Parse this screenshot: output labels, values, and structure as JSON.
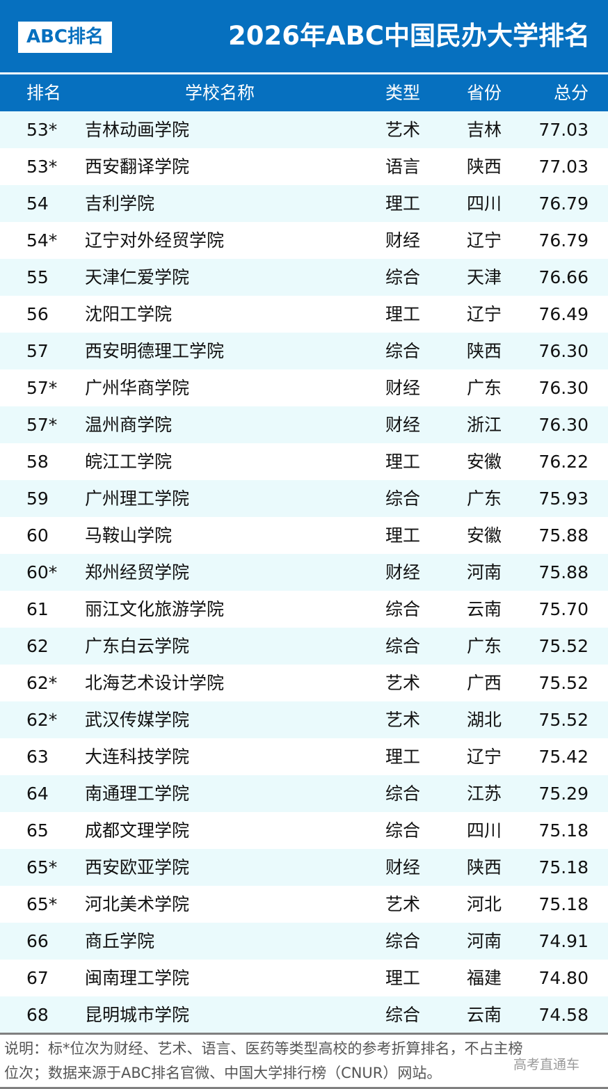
{
  "header": {
    "logo": "ABC排名",
    "title": "2026年ABC中国民办大学排名"
  },
  "columns": [
    "排名",
    "学校名称",
    "类型",
    "省份",
    "总分"
  ],
  "rows": [
    [
      "53*",
      "吉林动画学院",
      "艺术",
      "吉林",
      "77.03"
    ],
    [
      "53*",
      "西安翻译学院",
      "语言",
      "陕西",
      "77.03"
    ],
    [
      "54",
      "吉利学院",
      "理工",
      "四川",
      "76.79"
    ],
    [
      "54*",
      "辽宁对外经贸学院",
      "财经",
      "辽宁",
      "76.79"
    ],
    [
      "55",
      "天津仁爱学院",
      "综合",
      "天津",
      "76.66"
    ],
    [
      "56",
      "沈阳工学院",
      "理工",
      "辽宁",
      "76.49"
    ],
    [
      "57",
      "西安明德理工学院",
      "综合",
      "陕西",
      "76.30"
    ],
    [
      "57*",
      "广州华商学院",
      "财经",
      "广东",
      "76.30"
    ],
    [
      "57*",
      "温州商学院",
      "财经",
      "浙江",
      "76.30"
    ],
    [
      "58",
      "皖江工学院",
      "理工",
      "安徽",
      "76.22"
    ],
    [
      "59",
      "广州理工学院",
      "综合",
      "广东",
      "75.93"
    ],
    [
      "60",
      "马鞍山学院",
      "理工",
      "安徽",
      "75.88"
    ],
    [
      "60*",
      "郑州经贸学院",
      "财经",
      "河南",
      "75.88"
    ],
    [
      "61",
      "丽江文化旅游学院",
      "综合",
      "云南",
      "75.70"
    ],
    [
      "62",
      "广东白云学院",
      "综合",
      "广东",
      "75.52"
    ],
    [
      "62*",
      "北海艺术设计学院",
      "艺术",
      "广西",
      "75.52"
    ],
    [
      "62*",
      "武汉传媒学院",
      "艺术",
      "湖北",
      "75.52"
    ],
    [
      "63",
      "大连科技学院",
      "理工",
      "辽宁",
      "75.42"
    ],
    [
      "64",
      "南通理工学院",
      "综合",
      "江苏",
      "75.29"
    ],
    [
      "65",
      "成都文理学院",
      "综合",
      "四川",
      "75.18"
    ],
    [
      "65*",
      "西安欧亚学院",
      "财经",
      "陕西",
      "75.18"
    ],
    [
      "65*",
      "河北美术学院",
      "艺术",
      "河北",
      "75.18"
    ],
    [
      "66",
      "商丘学院",
      "综合",
      "河南",
      "74.91"
    ],
    [
      "67",
      "闽南理工学院",
      "理工",
      "福建",
      "74.80"
    ],
    [
      "68",
      "昆明城市学院",
      "综合",
      "云南",
      "74.58"
    ]
  ],
  "footer": {
    "note_line1": "说明：标*位次为财经、艺术、语言、医药等类型高校的参考折算排名，不占主榜",
    "note_line2": "位次；数据来源于ABC排名官微、中国大学排行榜（CNUR）网站。",
    "watermark": "高考直通车"
  },
  "colors": {
    "brand": "#0670bf",
    "row_alt": "#eafafc"
  }
}
